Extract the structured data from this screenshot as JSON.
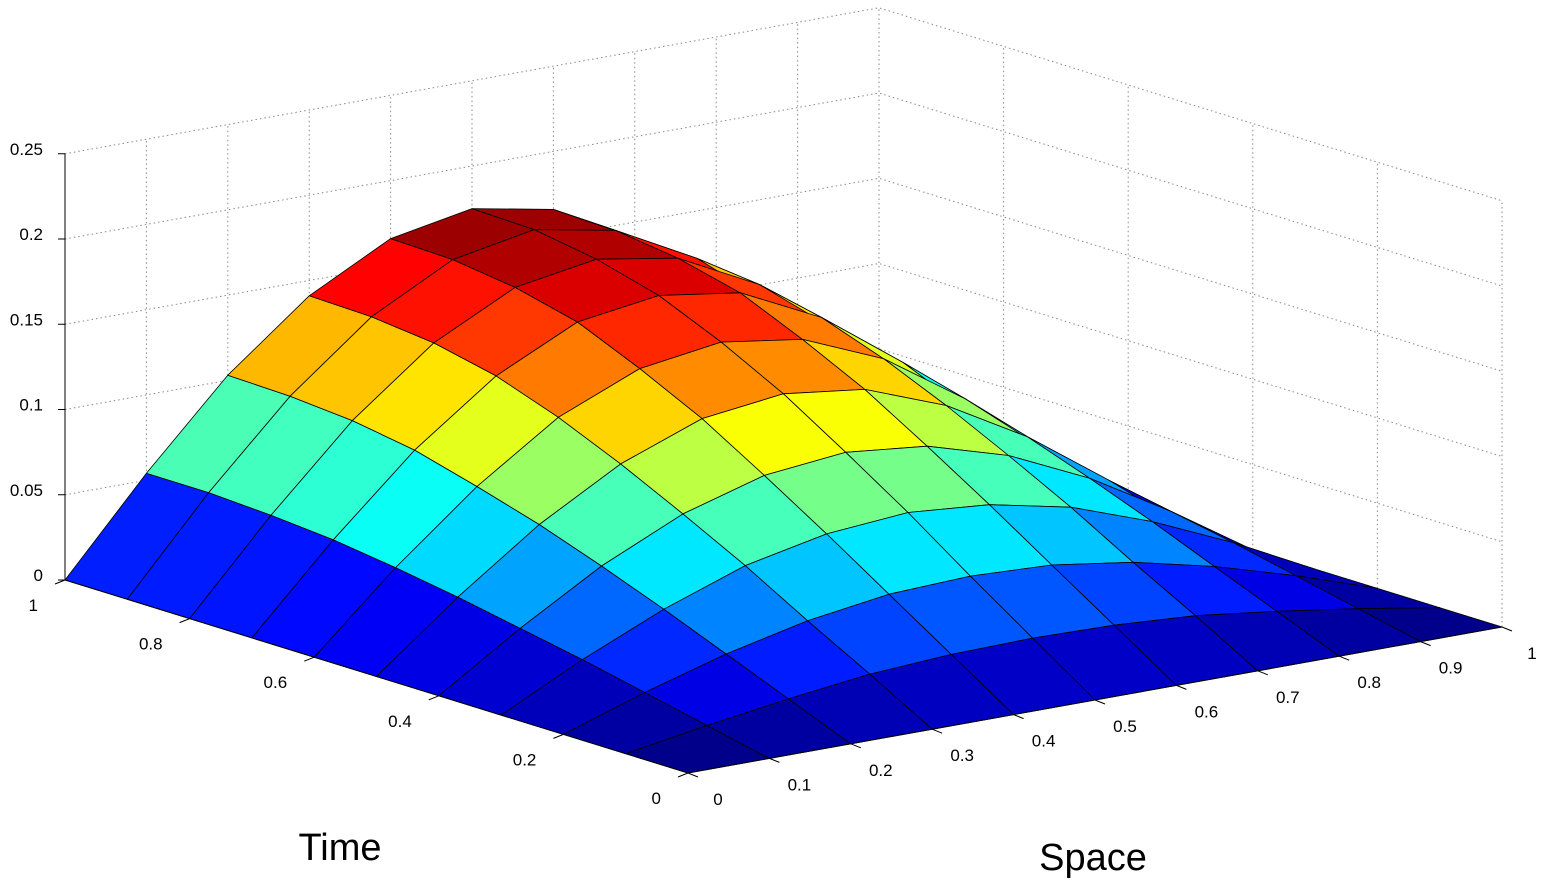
{
  "chart_data": {
    "type": "surface",
    "title": "",
    "xlabel": "Space",
    "ylabel": "Time",
    "zlabel": "",
    "x": [
      0,
      0.1,
      0.2,
      0.3,
      0.4,
      0.5,
      0.6,
      0.7,
      0.8,
      0.9,
      1
    ],
    "y": [
      0,
      0.1,
      0.2,
      0.3,
      0.4,
      0.5,
      0.6,
      0.7,
      0.8,
      0.9,
      1
    ],
    "z_formula_note": "",
    "z": [
      [
        0,
        0,
        0,
        0,
        0,
        0,
        0,
        0,
        0,
        0,
        0
      ],
      [
        0,
        0.008,
        0.015,
        0.021,
        0.024,
        0.025,
        0.024,
        0.021,
        0.015,
        0.008,
        0
      ],
      [
        0,
        0.016,
        0.03,
        0.041,
        0.048,
        0.05,
        0.048,
        0.041,
        0.03,
        0.016,
        0
      ],
      [
        0,
        0.024,
        0.045,
        0.062,
        0.072,
        0.076,
        0.072,
        0.062,
        0.045,
        0.024,
        0
      ],
      [
        0,
        0.031,
        0.059,
        0.081,
        0.095,
        0.1,
        0.095,
        0.081,
        0.059,
        0.031,
        0
      ],
      [
        0,
        0.038,
        0.072,
        0.099,
        0.117,
        0.123,
        0.117,
        0.099,
        0.072,
        0.038,
        0
      ],
      [
        0,
        0.044,
        0.083,
        0.115,
        0.135,
        0.142,
        0.135,
        0.115,
        0.083,
        0.044,
        0
      ],
      [
        0,
        0.049,
        0.093,
        0.128,
        0.151,
        0.158,
        0.151,
        0.128,
        0.093,
        0.049,
        0
      ],
      [
        0,
        0.052,
        0.099,
        0.136,
        0.16,
        0.168,
        0.16,
        0.136,
        0.099,
        0.052,
        0
      ],
      [
        0,
        0.054,
        0.102,
        0.14,
        0.165,
        0.174,
        0.165,
        0.14,
        0.102,
        0.054,
        0
      ],
      [
        0,
        0.054,
        0.103,
        0.141,
        0.166,
        0.175,
        0.166,
        0.141,
        0.103,
        0.054,
        0
      ]
    ],
    "xticks": [
      "0",
      "0.1",
      "0.2",
      "0.3",
      "0.4",
      "0.5",
      "0.6",
      "0.7",
      "0.8",
      "0.9",
      "1"
    ],
    "yticks": [
      "0",
      "0.2",
      "0.4",
      "0.6",
      "0.8",
      "1"
    ],
    "zticks": [
      "0",
      "0.05",
      "0.1",
      "0.15",
      "0.2",
      "0.25"
    ],
    "xlim": [
      0,
      1
    ],
    "ylim": [
      0,
      1
    ],
    "zlim": [
      0,
      0.25
    ],
    "grid": true,
    "colormap": "jet"
  }
}
